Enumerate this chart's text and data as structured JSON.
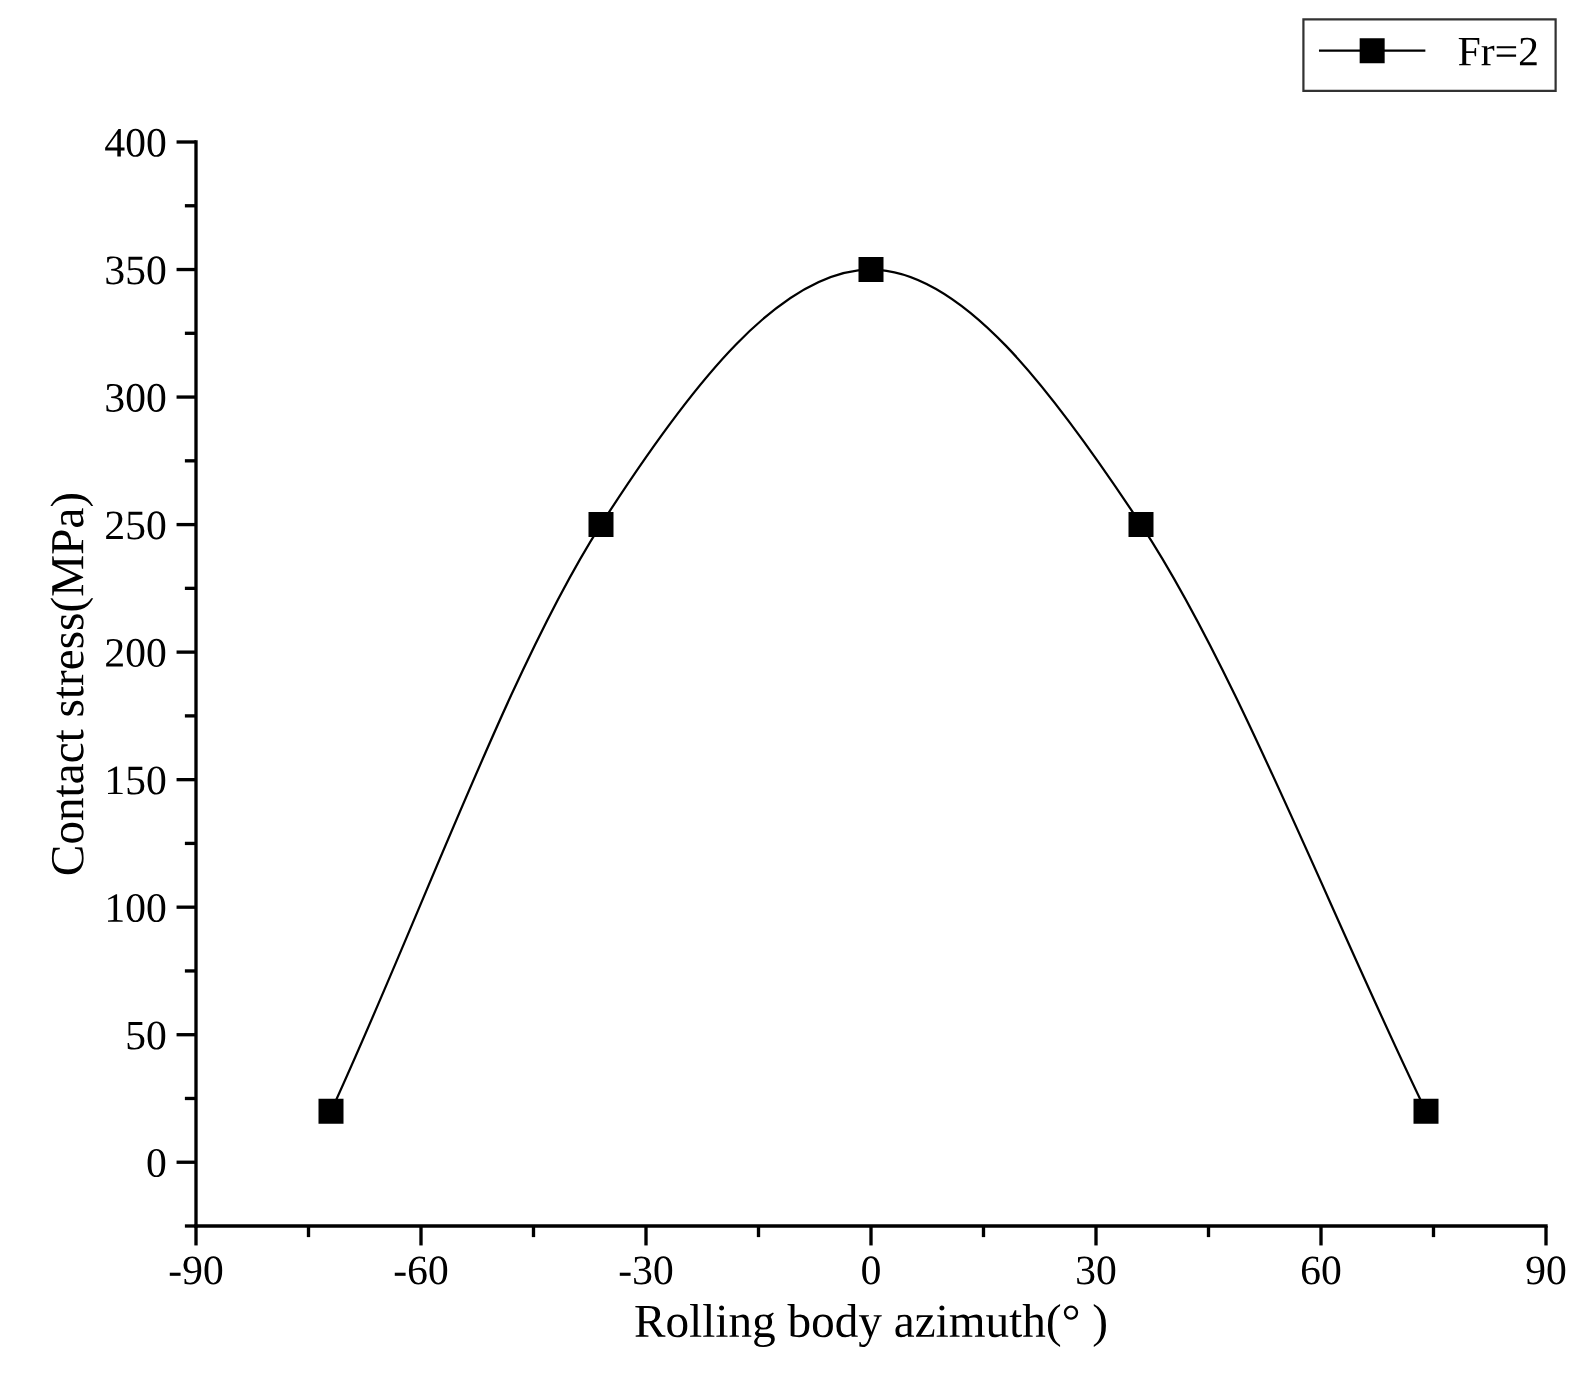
{
  "chart_data": {
    "type": "line",
    "xlabel": "Rolling body azimuth(° )",
    "ylabel": "Contact stress(MPa)",
    "x": [
      -72,
      -36,
      0,
      36,
      74
    ],
    "series": [
      {
        "name": "Fr=2",
        "color": "#000000",
        "values": [
          20,
          250,
          350,
          250,
          20
        ]
      }
    ],
    "xlim": [
      -90,
      90
    ],
    "xticks": [
      -90,
      -60,
      -30,
      0,
      30,
      60,
      90
    ],
    "ylim": [
      -25,
      400
    ],
    "yticks": [
      0,
      50,
      100,
      150,
      200,
      250,
      300,
      350,
      400
    ],
    "marker": "square",
    "line_style": "solid",
    "legend": "top right",
    "grid": false
  }
}
